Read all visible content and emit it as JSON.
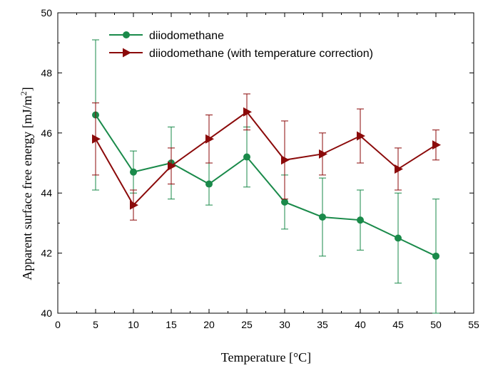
{
  "chart_data": {
    "type": "line",
    "xlabel": "Temperature [°C]",
    "ylabel": "Apparent surface free energy [mJ/m",
    "ylabel_sup": "2",
    "ylabel_end": "]",
    "xlim": [
      0,
      55
    ],
    "ylim": [
      40,
      50
    ],
    "xticks": [
      0,
      5,
      10,
      15,
      20,
      25,
      30,
      35,
      40,
      45,
      50,
      55
    ],
    "yticks": [
      40,
      42,
      44,
      46,
      48,
      50
    ],
    "legend_position": "top-left",
    "grid": false,
    "series": [
      {
        "name": "diiodomethane",
        "color": "#1a8a4a",
        "marker": "circle",
        "x": [
          5,
          10,
          15,
          20,
          25,
          30,
          35,
          40,
          45,
          50
        ],
        "y": [
          46.6,
          44.7,
          45.0,
          44.3,
          45.2,
          43.7,
          43.2,
          43.1,
          42.5,
          41.9
        ],
        "err_low": [
          44.1,
          44.0,
          43.8,
          43.6,
          44.2,
          42.8,
          41.9,
          42.1,
          41.0,
          40.0
        ],
        "err_high": [
          49.1,
          45.4,
          46.2,
          45.0,
          46.2,
          44.6,
          44.5,
          44.1,
          44.0,
          43.8
        ]
      },
      {
        "name": "diiodomethane (with temperature correction)",
        "color": "#8b0a0a",
        "marker": "triangle-right",
        "x": [
          5,
          10,
          15,
          20,
          25,
          30,
          35,
          40,
          45,
          50
        ],
        "y": [
          45.8,
          43.6,
          44.9,
          45.8,
          46.7,
          45.1,
          45.3,
          45.9,
          44.8,
          45.6
        ],
        "err_low": [
          44.6,
          43.1,
          44.3,
          45.0,
          46.1,
          43.8,
          44.6,
          45.0,
          44.1,
          45.1
        ],
        "err_high": [
          47.0,
          44.1,
          45.5,
          46.6,
          47.3,
          46.4,
          46.0,
          46.8,
          45.5,
          46.1
        ]
      }
    ]
  }
}
